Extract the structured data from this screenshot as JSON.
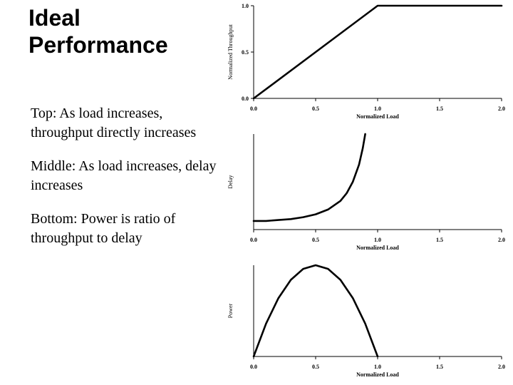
{
  "slide": {
    "title_line1": "Ideal",
    "title_line2": "Performance",
    "bullets": [
      "Top: As load increases, throughput directly increases",
      "Middle: As load increases, delay increases",
      "Bottom: Power is ratio of throughput to delay"
    ]
  },
  "chart_data": [
    {
      "type": "line",
      "xlabel": "Normalized Load",
      "ylabel": "Normalized Throughput",
      "xlim": [
        0,
        2
      ],
      "ylim": [
        0,
        1
      ],
      "xticks": [
        "0.0",
        "0.5",
        "1.0",
        "1.5",
        "2.0"
      ],
      "yticks": [
        "0.0",
        "0.5",
        "1.0"
      ],
      "series": [
        {
          "x": [
            0,
            1,
            2
          ],
          "y": [
            0,
            1,
            1
          ]
        }
      ]
    },
    {
      "type": "line",
      "xlabel": "Normalized Load",
      "ylabel": "Delay",
      "xlim": [
        0,
        2
      ],
      "ylim": [
        0,
        1
      ],
      "xticks": [
        "0.0",
        "0.5",
        "1.0",
        "1.5",
        "2.0"
      ],
      "yticks": [],
      "series": [
        {
          "x": [
            0,
            0.1,
            0.2,
            0.3,
            0.4,
            0.5,
            0.6,
            0.7,
            0.75,
            0.8,
            0.85,
            0.88,
            0.9
          ],
          "y": [
            0.09,
            0.09,
            0.1,
            0.11,
            0.13,
            0.16,
            0.21,
            0.3,
            0.38,
            0.5,
            0.68,
            0.85,
            1.0
          ]
        }
      ]
    },
    {
      "type": "line",
      "xlabel": "Normalized Load",
      "ylabel": "Power",
      "xlim": [
        0,
        2
      ],
      "ylim": [
        0,
        1
      ],
      "xticks": [
        "0.0",
        "0.5",
        "1.0",
        "1.5",
        "2.0"
      ],
      "yticks": [],
      "series": [
        {
          "x": [
            0,
            0.1,
            0.2,
            0.3,
            0.4,
            0.5,
            0.6,
            0.7,
            0.8,
            0.9,
            1.0
          ],
          "y": [
            0,
            0.36,
            0.64,
            0.84,
            0.96,
            1.0,
            0.96,
            0.84,
            0.64,
            0.36,
            0
          ]
        }
      ]
    }
  ]
}
